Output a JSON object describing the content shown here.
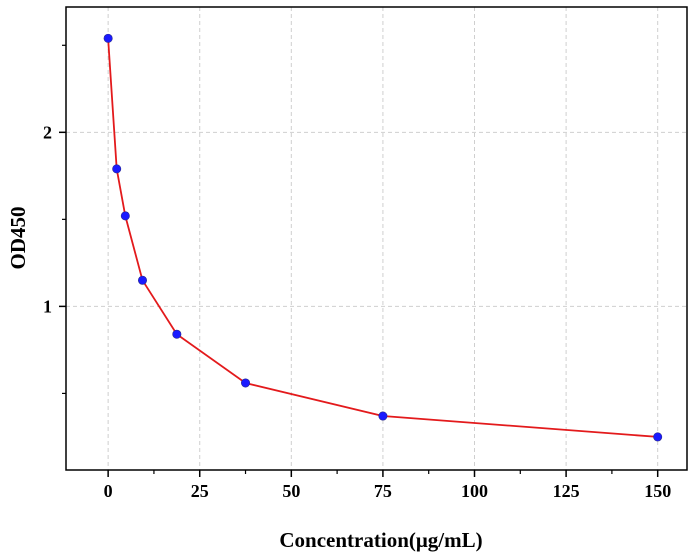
{
  "chart_data": {
    "type": "line",
    "title": "",
    "xlabel": "Concentration(μg/mL)",
    "ylabel": "OD450",
    "xlim": [
      -11.5,
      158
    ],
    "ylim": [
      0.06,
      2.72
    ],
    "x_ticks": [
      0,
      25,
      50,
      75,
      100,
      125,
      150
    ],
    "x_tick_labels": [
      "0",
      "25",
      "50",
      "75",
      "100",
      "125",
      "150"
    ],
    "y_major_ticks": [
      1,
      2
    ],
    "y_tick_labels": [
      "1",
      "2"
    ],
    "y_minor_ticks": [
      0.5,
      1.5,
      2.5
    ],
    "grid": true,
    "legend": "none",
    "line_color": "#e31a1c",
    "marker_color": "#1a1aff",
    "series": [
      {
        "x": [
          0,
          2.34,
          4.69,
          9.38,
          18.75,
          37.5,
          75,
          150
        ],
        "y": [
          2.54,
          1.79,
          1.52,
          1.15,
          0.84,
          0.56,
          0.37,
          0.25
        ]
      }
    ]
  }
}
